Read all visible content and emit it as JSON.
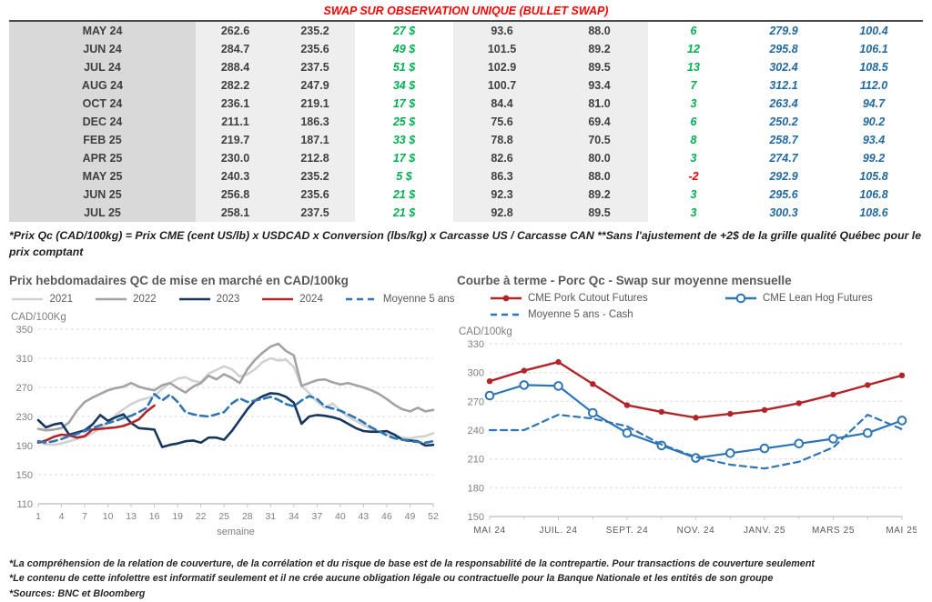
{
  "table": {
    "title": "SWAP SUR OBSERVATION UNIQUE (BULLET SWAP)",
    "rows": [
      [
        "MAY 24",
        "262.6",
        "235.2",
        "27 $",
        "93.6",
        "88.0",
        "6",
        "279.9",
        "100.4"
      ],
      [
        "JUN 24",
        "284.7",
        "235.6",
        "49 $",
        "101.5",
        "89.2",
        "12",
        "295.8",
        "106.1"
      ],
      [
        "JUL 24",
        "288.4",
        "237.5",
        "51 $",
        "102.9",
        "89.5",
        "13",
        "302.4",
        "108.5"
      ],
      [
        "AUG 24",
        "282.2",
        "247.9",
        "34 $",
        "100.7",
        "93.4",
        "7",
        "312.1",
        "112.0"
      ],
      [
        "OCT 24",
        "236.1",
        "219.1",
        "17 $",
        "84.4",
        "81.0",
        "3",
        "263.4",
        "94.7"
      ],
      [
        "DEC 24",
        "211.1",
        "186.3",
        "25 $",
        "75.6",
        "69.4",
        "6",
        "250.2",
        "90.2"
      ],
      [
        "FEB 25",
        "219.7",
        "187.1",
        "33 $",
        "78.8",
        "70.5",
        "8",
        "258.7",
        "93.4"
      ],
      [
        "APR 25",
        "230.0",
        "212.8",
        "17 $",
        "82.6",
        "80.0",
        "3",
        "274.7",
        "99.2"
      ],
      [
        "MAY 25",
        "240.3",
        "235.2",
        "5 $",
        "86.3",
        "88.0",
        "-2",
        "292.9",
        "105.8"
      ],
      [
        "JUN 25",
        "256.8",
        "235.6",
        "21 $",
        "92.3",
        "89.2",
        "3",
        "295.6",
        "106.8"
      ],
      [
        "JUL 25",
        "258.1",
        "237.5",
        "21 $",
        "92.8",
        "89.5",
        "3",
        "300.3",
        "108.6"
      ]
    ],
    "footnote": "*Prix Qc (CAD/100kg) = Prix CME (cent US/lb) x USDCAD x Conversion (lbs/kg) x Carcasse US / Carcasse CAN **Sans l'ajustement de +2$ de la grille qualité Québec pour le prix comptant"
  },
  "colors": {
    "title_red": "#ff0000",
    "green": "#00b050",
    "negative_red": "#e00000",
    "table_blue": "#2369a0",
    "series_light_gray": "#d2d2d2",
    "series_gray": "#a3a3a3",
    "series_navy": "#17375e",
    "series_red": "#b22428",
    "series_blue": "#2e75b6"
  },
  "chart_data": [
    {
      "type": "line",
      "title": "Prix hebdomadaires QC de mise en marché en CAD/100kg",
      "ylabel": "CAD/100Kg",
      "xlabel": "semaine",
      "ylim": [
        110,
        350
      ],
      "yticks": [
        110,
        150,
        190,
        230,
        270,
        310,
        350
      ],
      "x_numeric": true,
      "xlim": [
        1,
        52
      ],
      "xticks": [
        1,
        4,
        7,
        10,
        13,
        16,
        19,
        22,
        25,
        28,
        31,
        34,
        37,
        40,
        43,
        46,
        49,
        52
      ],
      "grid": "dashed",
      "legend_position": "top",
      "series": [
        {
          "name": "2021",
          "color": "#d2d2d2",
          "width": 2.6,
          "values": [
            195,
            192,
            191,
            193,
            196,
            199,
            202,
            207,
            214,
            222,
            232,
            240,
            247,
            252,
            255,
            258,
            268,
            276,
            282,
            284,
            279,
            277,
            289,
            294,
            299,
            295,
            285,
            288,
            295,
            305,
            310,
            307,
            308,
            298,
            272,
            262,
            250,
            242,
            248,
            238,
            230,
            224,
            218,
            213,
            209,
            206,
            203,
            201,
            200,
            202,
            203,
            207
          ]
        },
        {
          "name": "2022",
          "color": "#a3a3a3",
          "width": 2.6,
          "values": [
            213,
            211,
            212,
            214,
            222,
            238,
            250,
            256,
            261,
            266,
            269,
            271,
            276,
            271,
            268,
            266,
            273,
            276,
            269,
            263,
            271,
            276,
            286,
            281,
            288,
            283,
            276,
            295,
            308,
            318,
            326,
            330,
            320,
            314,
            272,
            276,
            280,
            281,
            277,
            274,
            276,
            273,
            270,
            266,
            261,
            254,
            246,
            240,
            237,
            242,
            237,
            239
          ]
        },
        {
          "name": "2023",
          "color": "#17375e",
          "width": 2.6,
          "values": [
            225,
            215,
            219,
            221,
            205,
            208,
            211,
            219,
            232,
            224,
            229,
            233,
            221,
            214,
            213,
            212,
            188,
            191,
            193,
            196,
            197,
            194,
            201,
            201,
            198,
            210,
            225,
            240,
            252,
            258,
            262,
            261,
            257,
            249,
            220,
            230,
            232,
            231,
            229,
            226,
            220,
            214,
            210,
            209,
            209,
            210,
            205,
            198,
            197,
            196,
            190,
            191
          ]
        },
        {
          "name": "2024",
          "color": "#b22428",
          "width": 2.6,
          "values": [
            194,
            197,
            202,
            205,
            204,
            201,
            203,
            212,
            213,
            214,
            215,
            217,
            221,
            226,
            237,
            245
          ]
        },
        {
          "name": "Moyenne 5 ans",
          "color": "#2e75b6",
          "width": 2.6,
          "dash": "8 5",
          "values": [
            196,
            194,
            196,
            199,
            203,
            206,
            210,
            214,
            218,
            221,
            224,
            228,
            231,
            236,
            242,
            261,
            252,
            260,
            250,
            236,
            233,
            231,
            230,
            233,
            236,
            248,
            255,
            250,
            252,
            254,
            257,
            253,
            247,
            244,
            252,
            258,
            254,
            244,
            241,
            238,
            233,
            228,
            222,
            215,
            210,
            204,
            200,
            198,
            196,
            195,
            194,
            196
          ]
        }
      ]
    },
    {
      "type": "line",
      "title": "Courbe à terme - Porc Qc - Swap sur moyenne mensuelle",
      "ylabel": "CAD/100kg",
      "xlabel": "",
      "ylim": [
        150,
        330
      ],
      "yticks": [
        150,
        180,
        210,
        240,
        270,
        300,
        330
      ],
      "x_numeric": false,
      "n_points": 13,
      "xtick_indices": [
        0,
        2,
        4,
        6,
        8,
        10,
        12
      ],
      "xtick_labels": [
        "MAI 24",
        "JUIL. 24",
        "SEPT. 24",
        "NOV. 24",
        "JANV. 25",
        "MARS 25",
        "MAI 25"
      ],
      "grid": "dashed",
      "legend_position": "top",
      "series": [
        {
          "name": "CME Pork Cutout Futures",
          "color": "#b22428",
          "width": 2.4,
          "marker": "filled",
          "values": [
            291,
            302,
            311,
            288,
            266,
            259,
            253,
            257,
            261,
            268,
            277,
            287,
            297
          ]
        },
        {
          "name": "CME Lean Hog Futures",
          "color": "#2e75b6",
          "width": 2.2,
          "marker": "open",
          "values": [
            276,
            287,
            286,
            258,
            237,
            224,
            211,
            216,
            221,
            226,
            231,
            237,
            250
          ]
        },
        {
          "name": "Moyenne 5 ans - Cash",
          "color": "#2e75b6",
          "width": 2.2,
          "dash": "7 5",
          "values": [
            240,
            240,
            256,
            252,
            244,
            225,
            212,
            204,
            200,
            207,
            222,
            256,
            241
          ]
        }
      ]
    }
  ],
  "footnotes": [
    "*La compréhension de la relation de couverture, de la corrélation et du risque de base est de la responsabilité de la contrepartie. Pour transactions de couverture seulement",
    "*Le contenu de cette infolettre est informatif seulement et il ne crée aucune obligation légale ou contractuelle pour la Banque Nationale et les entités de son groupe",
    "*Sources: BNC et Bloomberg"
  ]
}
